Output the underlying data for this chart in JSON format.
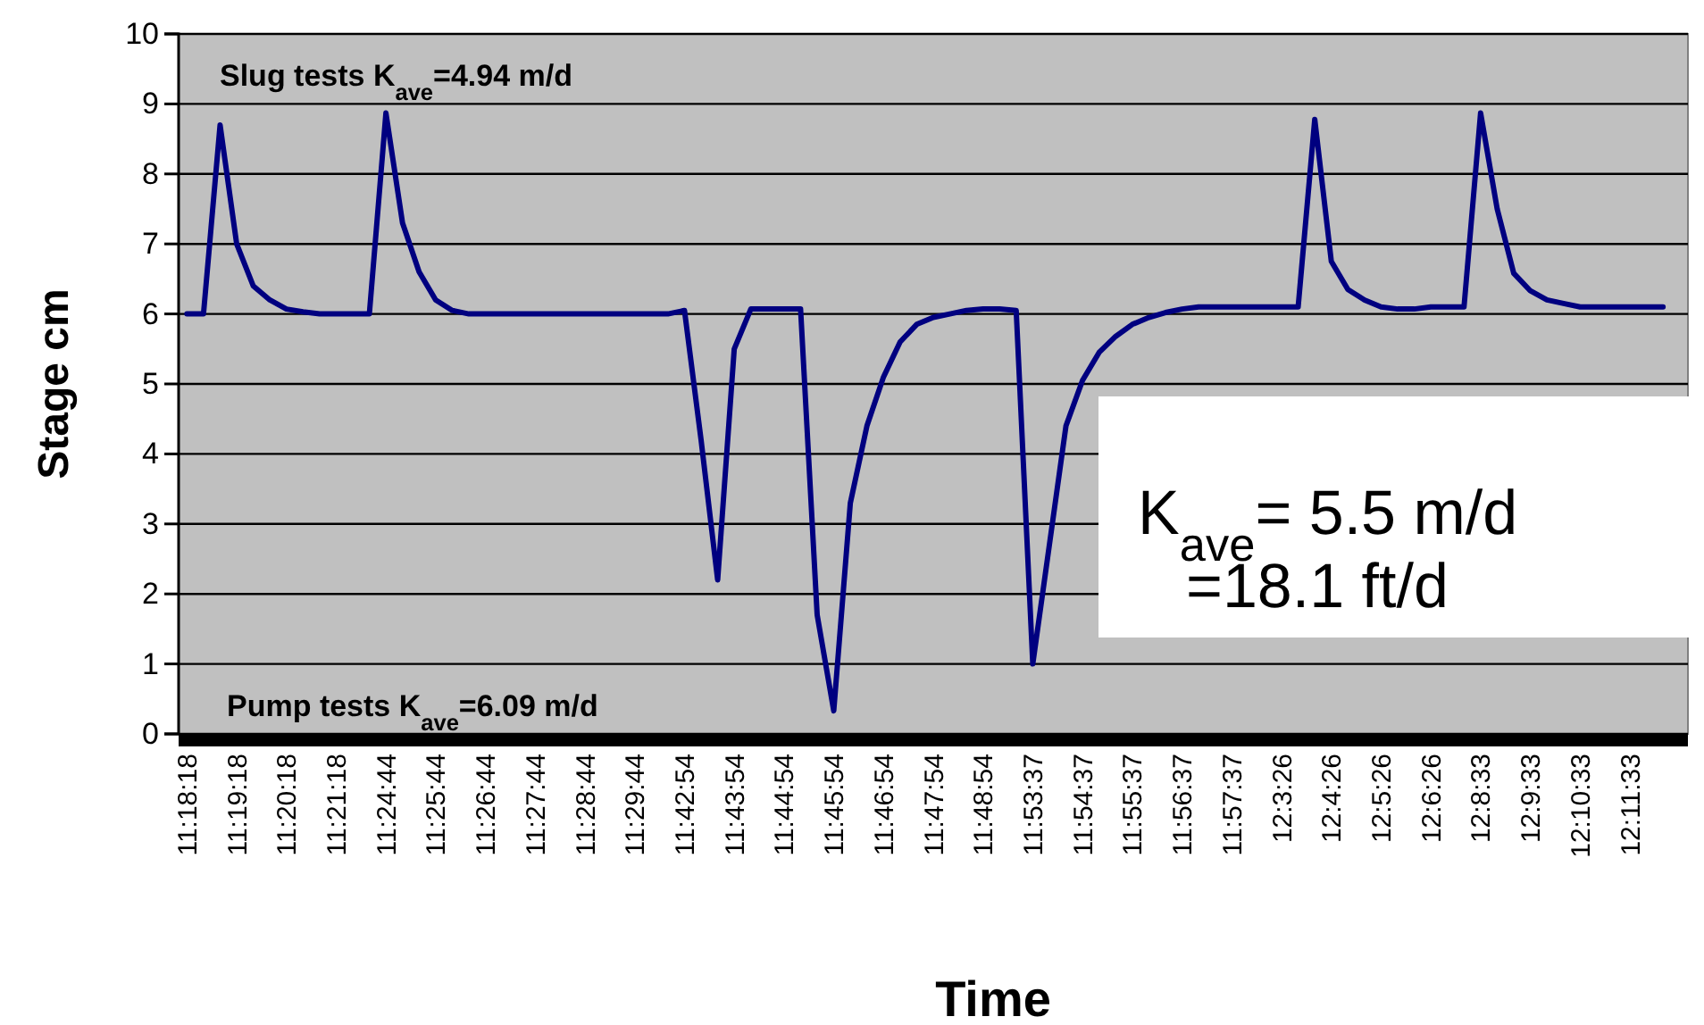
{
  "chart_data": {
    "type": "line",
    "xlabel": "Time",
    "ylabel": "Stage cm",
    "categories": [
      "11:18:18",
      null,
      null,
      "11:19:18",
      null,
      null,
      "11:20:18",
      null,
      null,
      "11:21:18",
      null,
      null,
      "11:24:44",
      null,
      null,
      "11:25:44",
      null,
      null,
      "11:26:44",
      null,
      null,
      "11:27:44",
      null,
      null,
      "11:28:44",
      null,
      null,
      "11:29:44",
      null,
      null,
      "11:42:54",
      null,
      null,
      "11:43:54",
      null,
      null,
      "11:44:54",
      null,
      null,
      "11:45:54",
      null,
      null,
      "11:46:54",
      null,
      null,
      "11:47:54",
      null,
      null,
      "11:48:54",
      null,
      null,
      "11:53:37",
      null,
      null,
      "11:54:37",
      null,
      null,
      "11:55:37",
      null,
      null,
      "11:56:37",
      null,
      null,
      "11:57:37",
      null,
      null,
      "12:3:26",
      null,
      null,
      "12:4:26",
      null,
      null,
      "12:5:26",
      null,
      null,
      "12:6:26",
      null,
      null,
      "12:8:33",
      null,
      null,
      "12:9:33",
      null,
      null,
      "12:10:33",
      null,
      null,
      "12:11:33",
      null,
      null,
      null
    ],
    "series": [
      {
        "color": "#000080",
        "values": [
          6.0,
          6.0,
          8.7,
          7.0,
          6.4,
          6.2,
          6.07,
          6.03,
          6.0,
          6.0,
          6.0,
          6.0,
          8.87,
          7.3,
          6.6,
          6.2,
          6.05,
          6.0,
          6.0,
          6.0,
          6.0,
          6.0,
          6.0,
          6.0,
          6.0,
          6.0,
          6.0,
          6.0,
          6.0,
          6.0,
          6.05,
          4.2,
          2.2,
          5.5,
          6.07,
          6.07,
          6.07,
          6.07,
          1.7,
          0.33,
          3.3,
          4.4,
          5.1,
          5.6,
          5.85,
          5.95,
          6.0,
          6.05,
          6.07,
          6.07,
          6.05,
          1.0,
          2.7,
          4.4,
          5.05,
          5.45,
          5.68,
          5.85,
          5.95,
          6.02,
          6.07,
          6.1,
          6.1,
          6.1,
          6.1,
          6.1,
          6.1,
          6.1,
          8.78,
          6.75,
          6.35,
          6.2,
          6.1,
          6.07,
          6.07,
          6.1,
          6.1,
          6.1,
          8.87,
          7.5,
          6.58,
          6.33,
          6.2,
          6.15,
          6.1,
          6.1,
          6.1,
          6.1,
          6.1,
          6.1,
          null
        ]
      }
    ],
    "ylim": [
      0,
      10
    ],
    "yticks": [
      0,
      1,
      2,
      3,
      4,
      5,
      6,
      7,
      8,
      9,
      10
    ],
    "grid": "y",
    "line_style": "solid",
    "marker": "none",
    "annotations": [
      "Slug tests K$_{ave}$=4.94 m/d",
      "Pump tests K$_{ave}$=6.09 m/d",
      "K$_{ave}$= 5.5 m/d",
      "=18.1 ft/d"
    ]
  }
}
